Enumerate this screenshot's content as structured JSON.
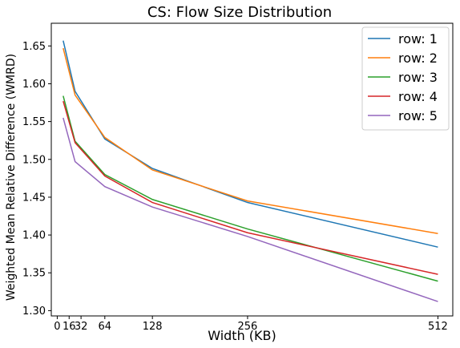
{
  "chart_data": {
    "type": "line",
    "title": "CS: Flow Size Distribution",
    "xlabel": "Width (KB)",
    "ylabel": "Weighted Mean Relative Difference (WMRD)",
    "xlim": [
      -8,
      532
    ],
    "ylim": [
      1.293,
      1.68
    ],
    "xticks": [
      0,
      16,
      32,
      64,
      128,
      256,
      512
    ],
    "xtick_labels": [
      "0",
      "16",
      "32",
      "64",
      "128",
      "256",
      "512"
    ],
    "yticks": [
      1.3,
      1.35,
      1.4,
      1.45,
      1.5,
      1.55,
      1.6,
      1.65
    ],
    "ytick_labels": [
      "1.30",
      "1.35",
      "1.40",
      "1.45",
      "1.50",
      "1.55",
      "1.60",
      "1.65"
    ],
    "grid": false,
    "legend_position": "top-right",
    "x": [
      8,
      24,
      64,
      128,
      256,
      512
    ],
    "series": [
      {
        "name": "row: 1",
        "color": "#1f77b4",
        "values": [
          1.657,
          1.59,
          1.527,
          1.488,
          1.443,
          1.384
        ]
      },
      {
        "name": "row: 2",
        "color": "#ff7f0e",
        "values": [
          1.647,
          1.585,
          1.529,
          1.486,
          1.445,
          1.402
        ]
      },
      {
        "name": "row: 3",
        "color": "#2ca02c",
        "values": [
          1.584,
          1.524,
          1.48,
          1.447,
          1.408,
          1.339
        ]
      },
      {
        "name": "row: 4",
        "color": "#d62728",
        "values": [
          1.577,
          1.522,
          1.478,
          1.443,
          1.403,
          1.348
        ]
      },
      {
        "name": "row: 5",
        "color": "#9467bd",
        "values": [
          1.555,
          1.497,
          1.464,
          1.437,
          1.398,
          1.312
        ]
      }
    ]
  }
}
